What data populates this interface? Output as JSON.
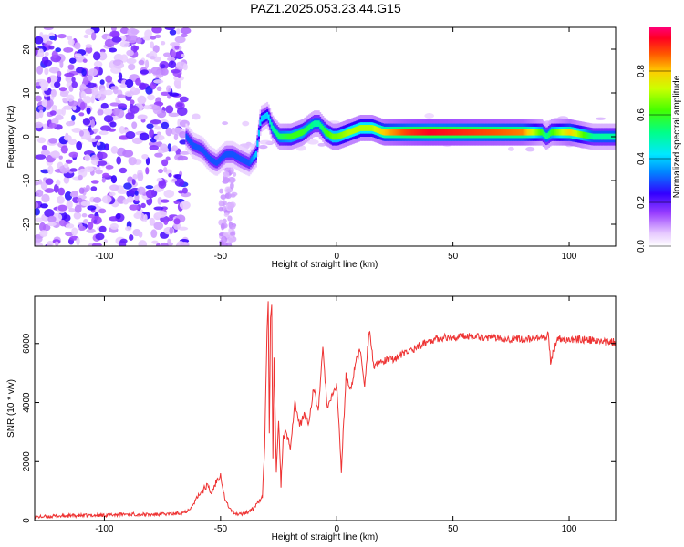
{
  "title": "PAZ1.2025.053.23.44.G15",
  "chart_data": [
    {
      "type": "heatmap",
      "xlabel": "Height of straight line (km)",
      "ylabel": "Frequency (Hz)",
      "xlim": [
        -130,
        120
      ],
      "ylim": [
        -25,
        25
      ],
      "xticks": [
        -100,
        -50,
        0,
        50,
        100
      ],
      "yticks": [
        -20,
        -10,
        0,
        10,
        20
      ],
      "colorbar": {
        "label": "Normalized spectral amplitude",
        "range": [
          0,
          1
        ],
        "ticks": [
          0.0,
          0.2,
          0.4,
          0.6,
          0.8
        ],
        "colors": [
          "#ffffff",
          "#e0b0ff",
          "#8800ff",
          "#0000ff",
          "#00ffff",
          "#00ff00",
          "#ffff00",
          "#ff8800",
          "#ff0000",
          "#ff0088"
        ]
      },
      "ridge": {
        "x": [
          -65,
          -62,
          -58,
          -55,
          -52,
          -48,
          -45,
          -42,
          -38,
          -35,
          -33,
          -30,
          -28,
          -25,
          -20,
          -15,
          -10,
          -8,
          -5,
          -2,
          0,
          5,
          10,
          15,
          20,
          30,
          40,
          60,
          80,
          88,
          90,
          92,
          100,
          110,
          120
        ],
        "y": [
          0,
          -2,
          -3,
          -5,
          -6,
          -4,
          -4,
          -5,
          -6,
          -4,
          4,
          5,
          2,
          0,
          0,
          1,
          3,
          3,
          1,
          0,
          0,
          1,
          2,
          2,
          1,
          1,
          1,
          1,
          1,
          1,
          0,
          1,
          1,
          0,
          0
        ],
        "amplitude": [
          0.3,
          0.3,
          0.3,
          0.3,
          0.3,
          0.3,
          0.3,
          0.3,
          0.3,
          0.4,
          0.4,
          0.4,
          0.5,
          0.55,
          0.6,
          0.6,
          0.5,
          0.5,
          0.6,
          0.65,
          0.65,
          0.7,
          0.7,
          0.7,
          0.8,
          0.9,
          0.95,
          0.9,
          0.85,
          0.6,
          0.5,
          0.6,
          0.8,
          0.5,
          0.5
        ]
      }
    },
    {
      "type": "line",
      "xlabel": "Height of straight line (km)",
      "ylabel": "SNR (10 * v/v)",
      "xlim": [
        -130,
        120
      ],
      "ylim": [
        0,
        7600
      ],
      "xticks": [
        -100,
        -50,
        0,
        50,
        100
      ],
      "yticks": [
        0,
        2000,
        4000,
        6000
      ],
      "series": [
        {
          "color": "#ee3333",
          "x": [
            -130,
            -120,
            -110,
            -100,
            -90,
            -80,
            -70,
            -65,
            -62,
            -60,
            -58,
            -56,
            -54,
            -52,
            -50,
            -49,
            -48,
            -47,
            -46,
            -44,
            -42,
            -40,
            -38,
            -36,
            -34,
            -32,
            -31,
            -30,
            -29.5,
            -29,
            -28.5,
            -28,
            -27.5,
            -27,
            -26,
            -25,
            -24,
            -23,
            -22,
            -20,
            -18,
            -16,
            -14,
            -12,
            -10,
            -8,
            -6,
            -4,
            -2,
            0,
            2,
            4,
            6,
            8,
            10,
            12,
            14,
            16,
            18,
            20,
            25,
            30,
            35,
            40,
            45,
            50,
            55,
            60,
            65,
            70,
            75,
            80,
            85,
            88,
            90,
            91,
            92,
            95,
            100,
            105,
            110,
            115,
            120
          ],
          "y": [
            120,
            150,
            170,
            180,
            220,
            200,
            230,
            300,
            500,
            800,
            1000,
            1200,
            900,
            1300,
            1600,
            1100,
            700,
            550,
            400,
            250,
            200,
            250,
            300,
            400,
            600,
            800,
            2500,
            6500,
            7500,
            3000,
            6800,
            7200,
            2000,
            5500,
            1500,
            3500,
            1200,
            2800,
            3000,
            2500,
            4000,
            3200,
            3600,
            3300,
            4500,
            3700,
            5800,
            3800,
            4200,
            4600,
            1700,
            4900,
            4400,
            5300,
            5800,
            4600,
            6500,
            5200,
            5300,
            5400,
            5500,
            5700,
            5900,
            6100,
            6200,
            6200,
            6250,
            6250,
            6200,
            6200,
            6150,
            6150,
            6150,
            6200,
            6100,
            6400,
            5400,
            6200,
            6100,
            6150,
            6100,
            6050,
            6050
          ]
        }
      ]
    }
  ]
}
